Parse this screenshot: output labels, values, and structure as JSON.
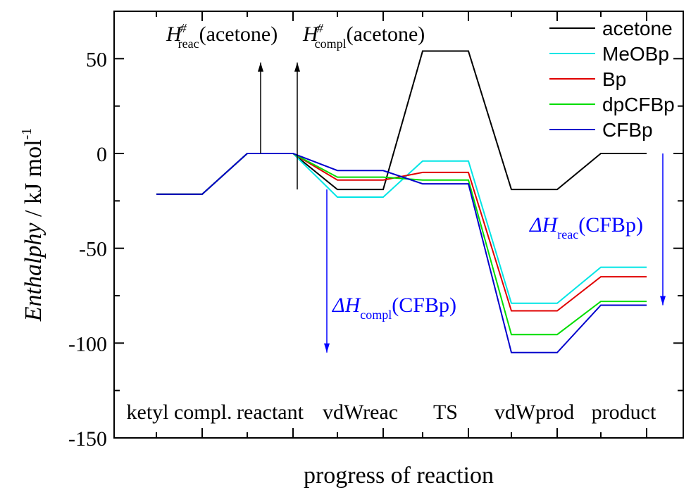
{
  "chart_data": {
    "type": "line",
    "title": "",
    "ylabel": {
      "italic": "Enthalphy",
      "rest": " / kJ mol",
      "sup": "-1"
    },
    "xlabel": "progress of reaction",
    "ylim": [
      -150,
      75
    ],
    "y_ticks": [
      50,
      0,
      -50,
      -100,
      -150
    ],
    "y_tick_labels": [
      "50",
      "0",
      "-50",
      "-100",
      "-150"
    ],
    "grid": false,
    "legend_position": "top-right",
    "categories": [
      "ketyl compl.",
      "reactant",
      "vdWreac",
      "TS",
      "vdWprod",
      "product"
    ],
    "series": [
      {
        "name": "acetone",
        "color": "#000000",
        "values": [
          -21.5,
          0,
          -19,
          54,
          -19,
          0
        ]
      },
      {
        "name": "MeOBp",
        "color": "#00e5e5",
        "values": [
          -21.5,
          0,
          -23,
          -4,
          -79,
          -60
        ]
      },
      {
        "name": "Bp",
        "color": "#e00000",
        "values": [
          -21.5,
          0,
          -14,
          -10,
          -83,
          -65
        ]
      },
      {
        "name": "dpCFBp",
        "color": "#00dd00",
        "values": [
          -21.5,
          0,
          -12.5,
          -14,
          -95.5,
          -78
        ]
      },
      {
        "name": "CFBp",
        "color": "#0000cc",
        "values": [
          -21.5,
          0,
          -9,
          -16,
          -105,
          -80
        ]
      }
    ],
    "annotations": {
      "h_reac_acetone": {
        "main": "H",
        "sup": "#",
        "sub": "reac",
        "tail": "(acetone)",
        "color": "#000000",
        "arrow_from": -19,
        "arrow_to": 48
      },
      "h_compl_acetone": {
        "main": "H",
        "sup": "#",
        "sub": "compl",
        "tail": "(acetone)",
        "color": "#000000",
        "arrow_from": -19,
        "arrow_to": 48
      },
      "dh_compl_cfbp": {
        "main": "ΔH",
        "sub": "compl",
        "tail": "(CFBp)",
        "color": "#0000ff",
        "arrow_from": -19,
        "arrow_to": -105
      },
      "dh_reac_cfbp": {
        "main": "ΔH",
        "sub": "reac",
        "tail": "(CFBp)",
        "color": "#0000ff",
        "arrow_from": 0,
        "arrow_to": -80
      }
    }
  }
}
